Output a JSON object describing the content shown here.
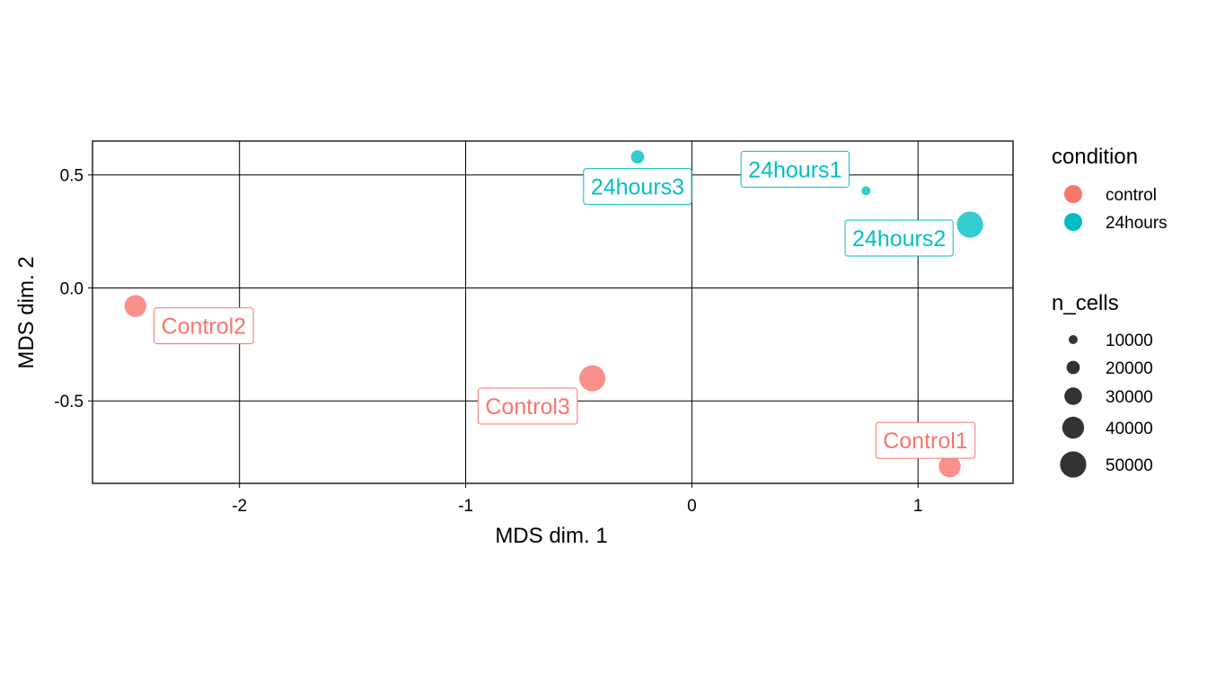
{
  "chart_data": {
    "type": "scatter",
    "title": "",
    "xlabel": "MDS dim. 1",
    "ylabel": "MDS dim. 2",
    "xlim": [
      -2.65,
      1.42
    ],
    "ylim": [
      -0.865,
      0.65
    ],
    "x_ticks": [
      -2,
      -1,
      0,
      1
    ],
    "x_tick_labels": [
      "-2",
      "-1",
      "0",
      "1"
    ],
    "y_ticks": [
      0.5,
      0.0,
      -0.5
    ],
    "y_tick_labels": [
      "0.5",
      "0.0",
      "-0.5"
    ],
    "grid": true,
    "points": [
      {
        "label": "Control2",
        "condition": "control",
        "x": -2.46,
        "y": -0.08,
        "n_cells": 40000
      },
      {
        "label": "Control3",
        "condition": "control",
        "x": -0.44,
        "y": -0.4,
        "n_cells": 50000
      },
      {
        "label": "Control1",
        "condition": "control",
        "x": 1.14,
        "y": -0.79,
        "n_cells": 40000
      },
      {
        "label": "24hours3",
        "condition": "24hours",
        "x": -0.24,
        "y": 0.58,
        "n_cells": 20000
      },
      {
        "label": "24hours1",
        "condition": "24hours",
        "x": 0.77,
        "y": 0.43,
        "n_cells": 10000
      },
      {
        "label": "24hours2",
        "condition": "24hours",
        "x": 1.23,
        "y": 0.28,
        "n_cells": 50000
      }
    ],
    "legend": {
      "placement": "right",
      "color": {
        "title": "condition",
        "entries": [
          {
            "label": "control",
            "key": "control",
            "color": "#F8766D"
          },
          {
            "label": "24hours",
            "key": "24hours",
            "color": "#00BFC4"
          }
        ]
      },
      "size": {
        "title": "n_cells",
        "entries": [
          {
            "label": "10000",
            "value": 10000
          },
          {
            "label": "20000",
            "value": 20000
          },
          {
            "label": "30000",
            "value": 30000
          },
          {
            "label": "40000",
            "value": 40000
          },
          {
            "label": "50000",
            "value": 50000
          }
        ]
      }
    }
  }
}
